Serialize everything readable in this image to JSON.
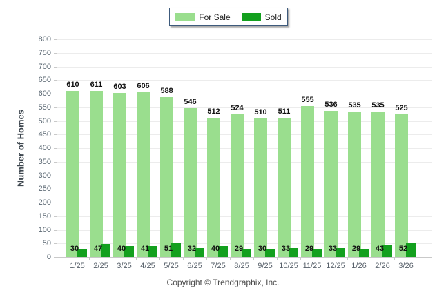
{
  "chart_data": {
    "type": "bar",
    "title": "",
    "xlabel": "",
    "ylabel": "Number of Homes",
    "ylim": [
      0,
      800
    ],
    "ytick_step": 50,
    "grid": true,
    "legend_position": "top-center",
    "categories": [
      "1/25",
      "2/25",
      "3/25",
      "4/25",
      "5/25",
      "6/25",
      "7/25",
      "8/25",
      "9/25",
      "10/25",
      "11/25",
      "12/25",
      "1/26",
      "2/26",
      "3/26"
    ],
    "series": [
      {
        "name": "For Sale",
        "color": "#9ade8e",
        "values": [
          610,
          611,
          603,
          606,
          588,
          546,
          512,
          524,
          510,
          511,
          555,
          536,
          535,
          535,
          525
        ]
      },
      {
        "name": "Sold",
        "color": "#13a01e",
        "values": [
          30,
          47,
          40,
          41,
          51,
          32,
          40,
          29,
          30,
          33,
          29,
          33,
          29,
          43,
          52
        ]
      }
    ]
  },
  "footer": {
    "copyright": "Copyright © Trendgraphix, Inc."
  },
  "colors": {
    "for_sale": "#9ade8e",
    "sold": "#13a01e",
    "gridline": "#ececec",
    "axis_text": "#5a6772",
    "value_text": "#111111",
    "legend_border": "#3d5a7c"
  }
}
